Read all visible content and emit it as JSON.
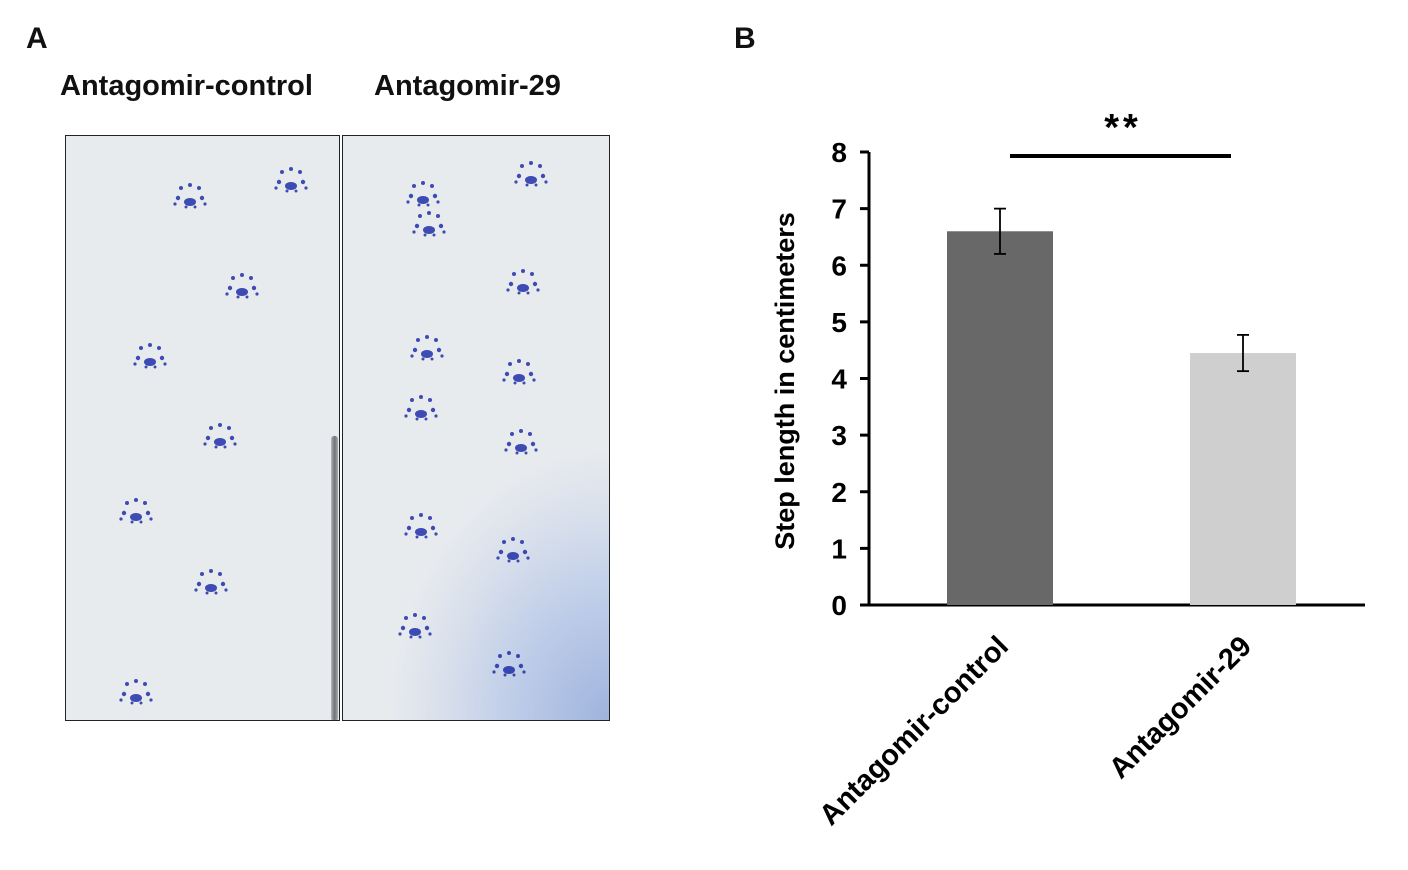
{
  "panel_a": {
    "letter": "A",
    "left_title": "Antagomir-control",
    "right_title": "Antagomir-29"
  },
  "panel_b": {
    "letter": "B",
    "significance": "**"
  },
  "colors": {
    "bar_control": "#686868",
    "bar_treated": "#cfcfcf",
    "ink": "#1e2fa8"
  },
  "chart_data": {
    "type": "bar",
    "categories": [
      "Antagomir-control",
      "Antagomir-29"
    ],
    "values": [
      6.6,
      4.45
    ],
    "error": [
      0.4,
      0.32
    ],
    "ylabel": "Step length in centimeters",
    "xlabel": "",
    "ylim": [
      0,
      8
    ],
    "yticks": [
      "0",
      "1",
      "2",
      "3",
      "4",
      "5",
      "6",
      "7",
      "8"
    ],
    "grid": false,
    "annotation": "**"
  }
}
